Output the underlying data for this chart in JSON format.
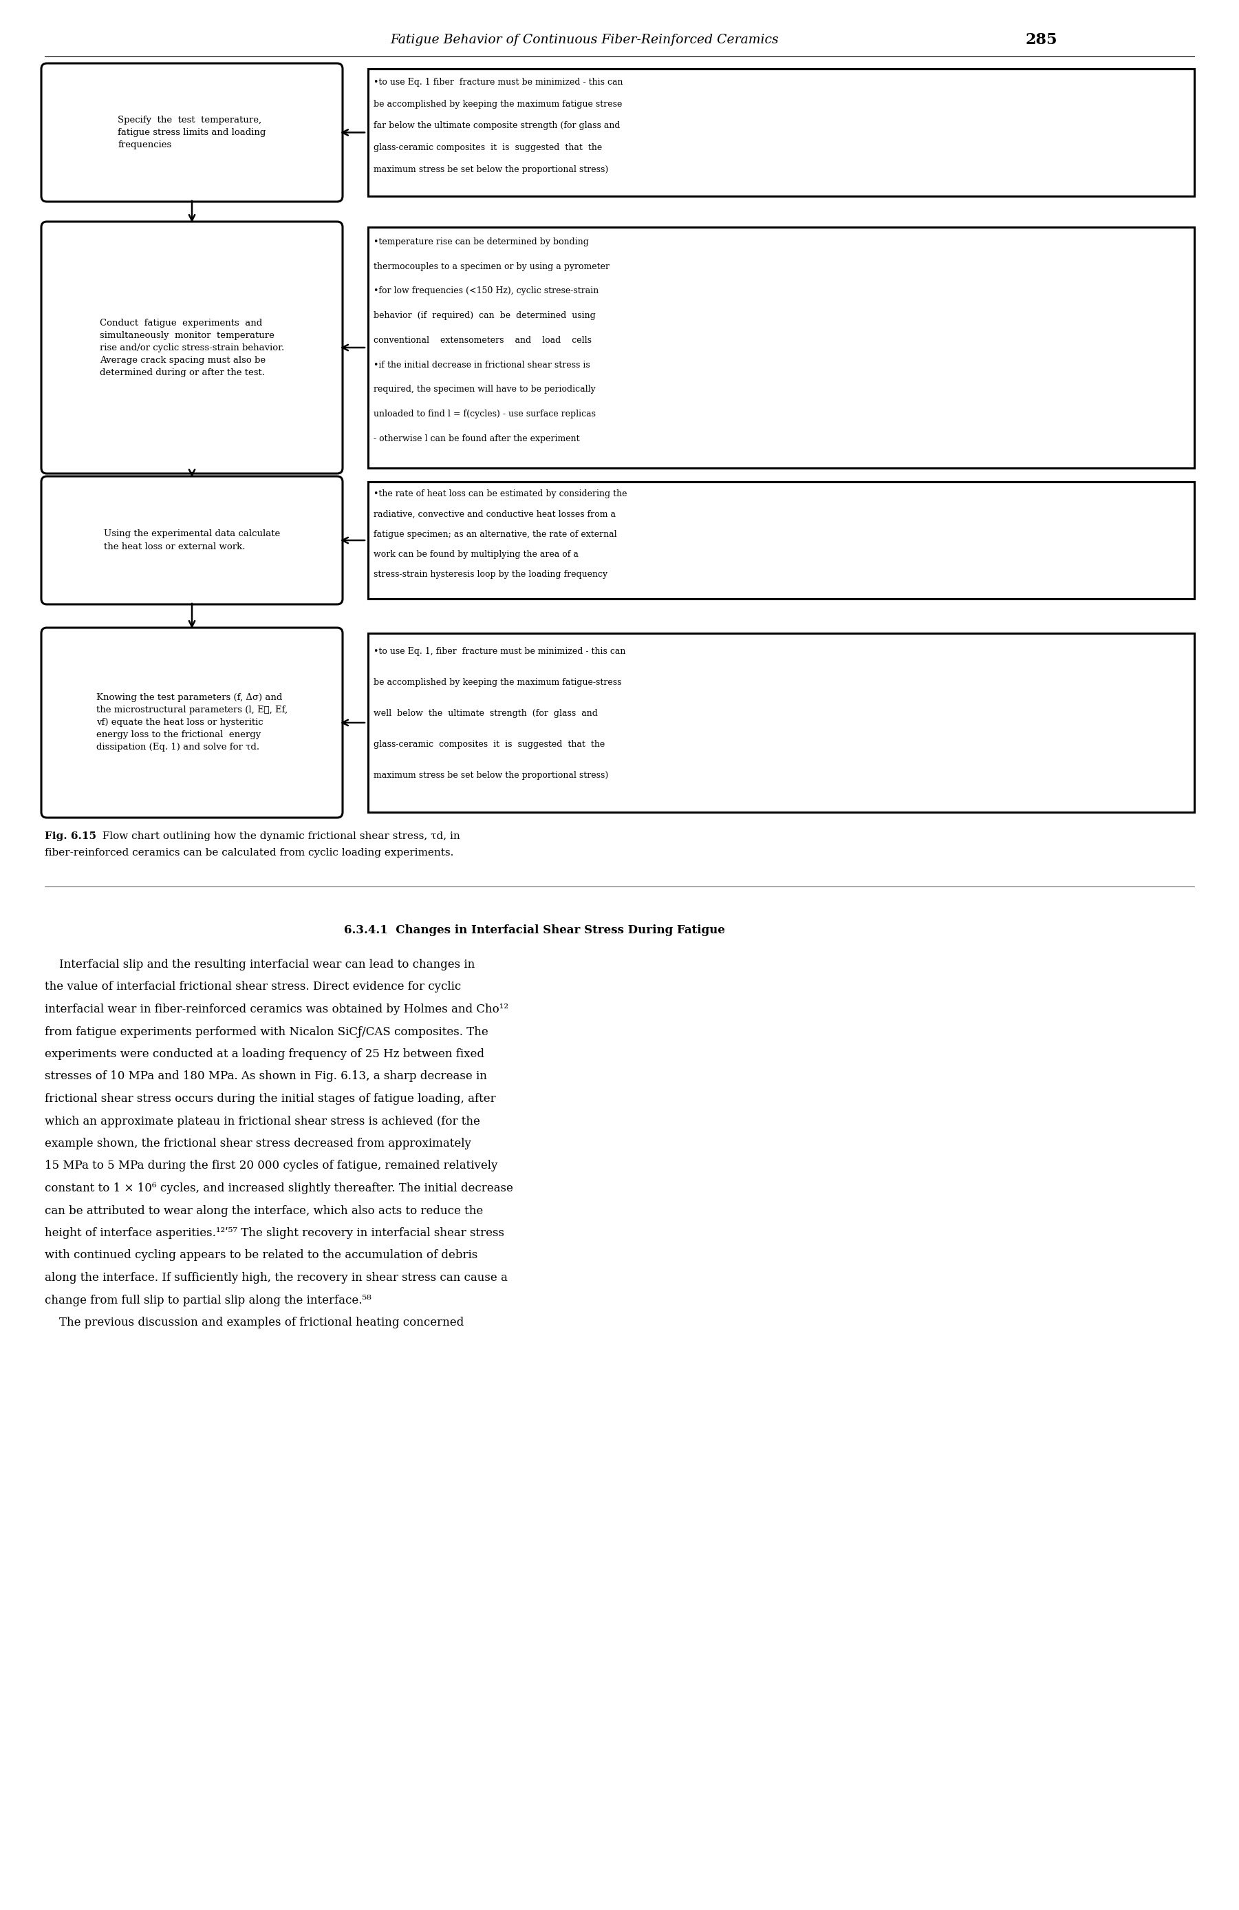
{
  "page_header_italic": "Fatigue Behavior of Continuous Fiber-Reinforced Ceramics",
  "page_number": "285",
  "left_boxes": [
    {
      "text": "Specify  the  test  temperature,\nfatigue stress limits and loading\nfrequencies",
      "rounded": true
    },
    {
      "text": "Conduct  fatigue  experiments  and\nsimultaneously  monitor  temperature\nrise and/or cyclic stress-strain behavior.\nAverage crack spacing must also be\ndetermined during or after the test.",
      "rounded": true
    },
    {
      "text": "Using the experimental data calculate\nthe heat loss or external work.",
      "rounded": true
    },
    {
      "text": "Knowing the test parameters (f, Δσ) and\nthe microstructural parameters (l, EⰉ, Ef,\nvf) equate the heat loss or hysteritic\nenergy loss to the frictional  energy\ndissipation (Eq. 1) and solve for τd.",
      "rounded": true
    }
  ],
  "right_boxes": [
    {
      "lines": [
        "•to use Eq. 1 fiber  fracture must be minimized - this can",
        "be accomplished by keeping the maximum fatigue strese",
        "far below the ultimate composite strength (for glass and",
        "glass-ceramic composites  it  is  suggested  that  the",
        "maximum stress be set below the proportional stress)"
      ]
    },
    {
      "lines": [
        "•temperature rise can be determined by bonding",
        "thermocouples to a specimen or by using a pyrometer",
        "•for low frequencies (<150 Hz), cyclic strese-strain",
        "behavior  (if  required)  can  be  determined  using",
        "conventional    extensometers    and    load    cells",
        "•if the initial decrease in frictional shear stress is",
        "required, the specimen will have to be periodically",
        "unloaded to find l = f(cycles) - use surface replicas",
        "- otherwise l can be found after the experiment"
      ]
    },
    {
      "lines": [
        "•the rate of heat loss can be estimated by considering the",
        "radiative, convective and conductive heat losses from a",
        "fatigue specimen; as an alternative, the rate of external",
        "work can be found by multiplying the area of a",
        "stress-strain hysteresis loop by the loading frequency"
      ]
    },
    {
      "lines": [
        "•to use Eq. 1, fiber  fracture must be minimized - this can",
        "be accomplished by keeping the maximum fatigue-stress",
        "well  below  the  ultimate  strength  (for  glass  and",
        "glass-ceramic  composites  it  is  suggested  that  the",
        "maximum stress be set below the proportional stress)"
      ]
    }
  ],
  "fig_caption_bold": "Fig. 6.15",
  "fig_caption_rest": "  Flow chart outlining how the dynamic frictional shear stress, τd, in",
  "fig_caption_line2": "fiber-reinforced ceramics can be calculated from cyclic loading experiments.",
  "section_title": "6.3.4.1  Changes in Interfacial Shear Stress During Fatigue",
  "body_paragraph1_indent": "    Interfacial slip and the resulting interfacial wear can lead to changes in",
  "body_lines": [
    "    Interfacial slip and the resulting interfacial wear can lead to changes in",
    "the value of interfacial frictional shear stress. Direct evidence for cyclic",
    "interfacial wear in fiber-reinforced ceramics was obtained by Holmes and Cho¹²",
    "from fatigue experiments performed with Nicalon SiCƒ/CAS composites. The",
    "experiments were conducted at a loading frequency of 25 Hz between fixed",
    "stresses of 10 MPa and 180 MPa. As shown in Fig. 6.13, a sharp decrease in",
    "frictional shear stress occurs during the initial stages of fatigue loading, after",
    "which an approximate plateau in frictional shear stress is achieved (for the",
    "example shown, the frictional shear stress decreased from approximately",
    "15 MPa to 5 MPa during the first 20 000 cycles of fatigue, remained relatively",
    "constant to 1 × 10⁶ cycles, and increased slightly thereafter. The initial decrease",
    "can be attributed to wear along the interface, which also acts to reduce the",
    "height of interface asperities.¹²ʹ⁵⁷ The slight recovery in interfacial shear stress",
    "with continued cycling appears to be related to the accumulation of debris",
    "along the interface. If sufficiently high, the recovery in shear stress can cause a",
    "change from full slip to partial slip along the interface.⁵⁸",
    "    The previous discussion and examples of frictional heating concerned"
  ],
  "bg_color": "#ffffff",
  "box_edge_color": "#000000",
  "text_color": "#000000",
  "lw_heavy": 2.2,
  "lw_arrow": 1.8
}
